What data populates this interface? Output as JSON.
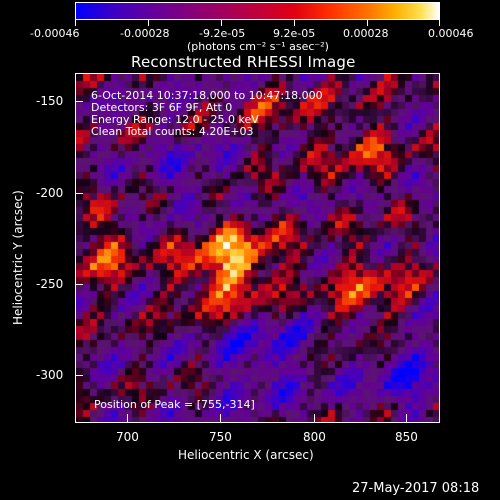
{
  "colorbar": {
    "tick_labels": [
      "-0.00046",
      "-0.00028",
      "-9.2e-05",
      "9.2e-05",
      "0.00028",
      "0.00046"
    ],
    "unit_label": "(photons cm⁻² s⁻¹ asec⁻²)"
  },
  "title": "Reconstructed RHESSI Image",
  "info": {
    "line1": "6-Oct-2014 10:37:18.000 to 10:47:18.000",
    "line2": "Detectors: 3F 6F 9F, Att 0",
    "line3": "Energy Range: 12.0 - 25.0 keV",
    "line4": "Clean     Total counts: 4.20E+03"
  },
  "peak_label": "Position of Peak = [755,-314]",
  "xaxis": {
    "label": "Heliocentric X (arcsec)",
    "ticks": [
      "700",
      "750",
      "800",
      "850"
    ]
  },
  "yaxis": {
    "label": "Heliocentric Y (arcsec)",
    "ticks": [
      "-150",
      "-200",
      "-250",
      "-300"
    ]
  },
  "timestamp": "27-May-2017 08:18",
  "colors": {
    "background": "#000000",
    "axis": "#ffffff",
    "low": "#0000ff",
    "high": "#ffffff"
  }
}
